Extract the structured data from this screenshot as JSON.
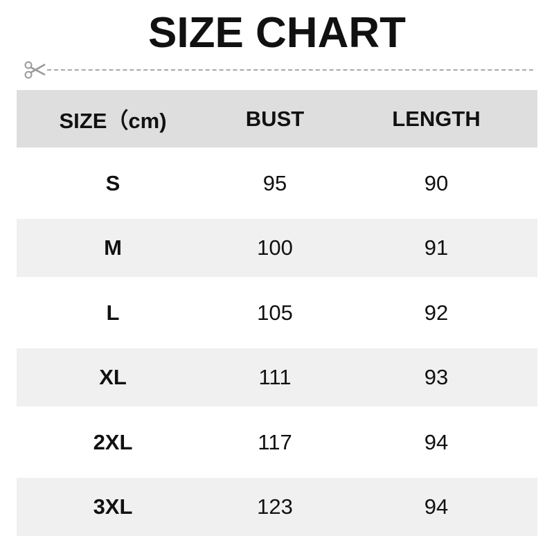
{
  "title": "SIZE CHART",
  "icons": {
    "cut_line": "scissors-icon"
  },
  "colors": {
    "header_bg": "#dedede",
    "alt_row_bg": "#f0f0f0"
  },
  "table": {
    "headers": [
      "SIZE（cm)",
      "BUST",
      "LENGTH"
    ],
    "rows": [
      [
        "S",
        "95",
        "90"
      ],
      [
        "M",
        "100",
        "91"
      ],
      [
        "L",
        "105",
        "92"
      ],
      [
        "XL",
        "111",
        "93"
      ],
      [
        "2XL",
        "117",
        "94"
      ],
      [
        "3XL",
        "123",
        "94"
      ]
    ]
  }
}
